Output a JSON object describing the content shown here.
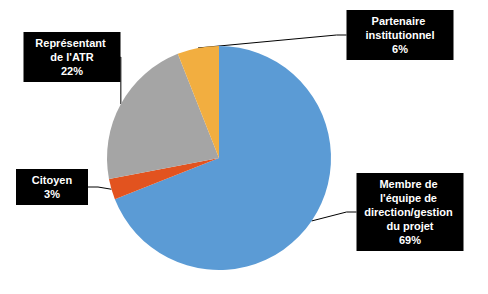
{
  "chart_data": {
    "type": "pie",
    "categories": [
      "Membre de l'équipe de direction/gestion du projet",
      "Citoyen",
      "Représentant de l'ATR",
      "Partenaire institutionnel"
    ],
    "values": [
      69,
      3,
      22,
      6
    ],
    "value_labels": [
      "69%",
      "3%",
      "22%",
      "6%"
    ],
    "colors": [
      "#5b9bd5",
      "#e2531f",
      "#a5a5a5",
      "#f2ae40"
    ],
    "data_labels": true
  }
}
